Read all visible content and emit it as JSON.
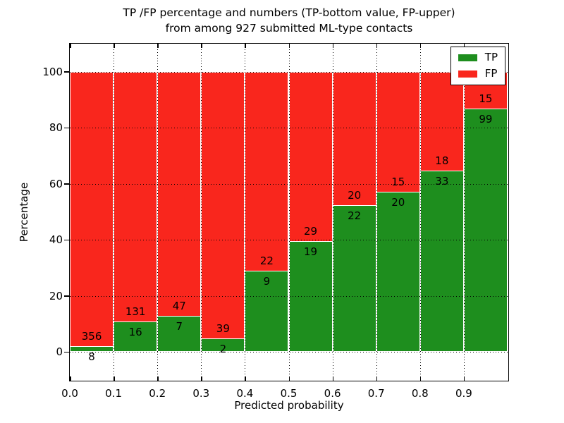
{
  "chart_data": {
    "type": "bar",
    "subtype": "stacked-percentage",
    "title_lines": [
      "TP /FP percentage and numbers (TP-bottom value, FP-upper)",
      "from among 927 submitted ML-type contacts"
    ],
    "xlabel": "Predicted probability",
    "ylabel": "Percentage",
    "total_contacts": 927,
    "bin_edges": [
      0.0,
      0.1,
      0.2,
      0.3,
      0.4,
      0.5,
      0.6,
      0.7,
      0.8,
      0.9,
      1.0
    ],
    "categories": [
      "0.0-0.1",
      "0.1-0.2",
      "0.2-0.3",
      "0.3-0.4",
      "0.4-0.5",
      "0.5-0.6",
      "0.6-0.7",
      "0.7-0.8",
      "0.8-0.9",
      "0.9-1.0"
    ],
    "series": [
      {
        "name": "TP",
        "color": "#1e8e1e",
        "counts": [
          8,
          16,
          7,
          2,
          9,
          19,
          22,
          20,
          33,
          99
        ],
        "percent": [
          2.2,
          10.88,
          12.96,
          4.88,
          29.03,
          39.58,
          52.38,
          57.14,
          64.71,
          86.84
        ]
      },
      {
        "name": "FP",
        "color": "#f9261d",
        "counts": [
          356,
          131,
          47,
          39,
          22,
          29,
          20,
          15,
          18,
          15
        ],
        "percent": [
          97.8,
          89.12,
          87.04,
          95.12,
          70.97,
          60.42,
          47.62,
          42.86,
          35.29,
          13.16
        ]
      }
    ],
    "x_tick_labels": [
      "0.0",
      "0.1",
      "0.2",
      "0.3",
      "0.4",
      "0.5",
      "0.6",
      "0.7",
      "0.8",
      "0.9"
    ],
    "y_tick_values": [
      0,
      20,
      40,
      60,
      80,
      100
    ],
    "y_tick_labels": [
      "0",
      "20",
      "40",
      "60",
      "80",
      "100"
    ],
    "xlim": [
      0.0,
      1.0
    ],
    "ylim": [
      -10,
      110
    ],
    "grid": true,
    "grid_style": "dotted",
    "legend": {
      "position": "upper right",
      "entries": [
        {
          "label": "TP",
          "color": "#1e8e1e"
        },
        {
          "label": "FP",
          "color": "#f9261d"
        }
      ]
    }
  }
}
